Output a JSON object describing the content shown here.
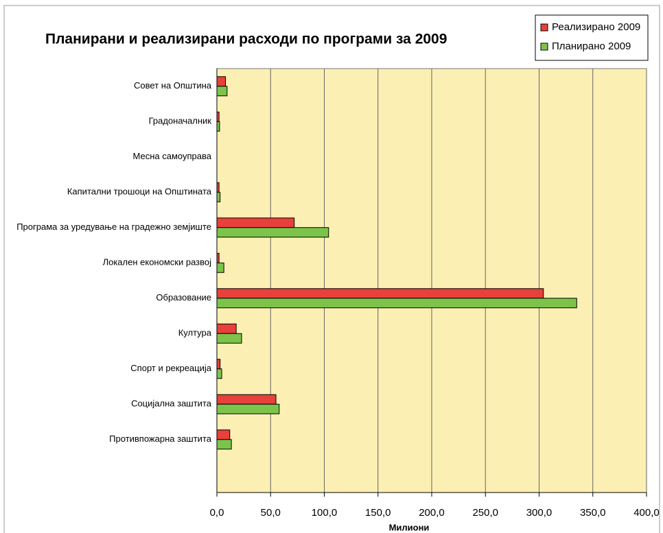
{
  "chart_data": {
    "type": "bar",
    "orientation": "horizontal",
    "title": "Планирани и реализирани расходи по програми за 2009",
    "x_label": "Милиони",
    "categories": [
      "Совет на Општина",
      "Градоначалник",
      "Месна самоуправа",
      "Капитални трошоци на Општината",
      "Програма  за уредување на градежно земјиште",
      "Локален економски развој",
      "Образование",
      "Култура",
      "Спорт и рекреација",
      "Социјална заштита",
      "Противпожарна заштита",
      null
    ],
    "series": [
      {
        "name": "Реализирано 2009",
        "color": "#e8403a",
        "values": [
          8,
          2,
          0,
          2,
          72,
          2,
          304,
          18,
          3,
          55,
          12,
          null
        ]
      },
      {
        "name": "Планирано 2009",
        "color": "#7cc34a",
        "values": [
          9.5,
          2.5,
          0,
          3,
          104,
          6.5,
          335,
          23,
          4.5,
          58,
          13.5,
          null
        ]
      }
    ],
    "xlim": [
      0,
      400
    ],
    "xticks": [
      {
        "value": 0,
        "label": "0,0"
      },
      {
        "value": 50,
        "label": "50,0"
      },
      {
        "value": 100,
        "label": "100,0"
      },
      {
        "value": 150,
        "label": "150,0"
      },
      {
        "value": 200,
        "label": "200,0"
      },
      {
        "value": 250,
        "label": "250,0"
      },
      {
        "value": 300,
        "label": "300,0"
      },
      {
        "value": 350,
        "label": "350,0"
      },
      {
        "value": 400,
        "label": "400,0"
      }
    ],
    "grid": true,
    "legend": "top-right",
    "plot_background": "#fbefb3"
  }
}
